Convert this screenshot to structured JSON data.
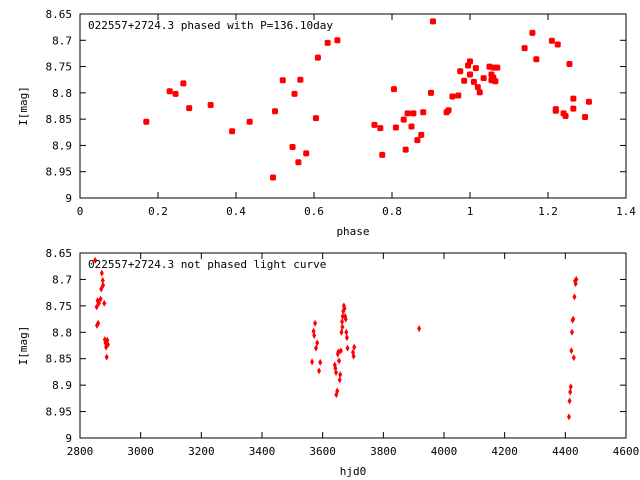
{
  "chart_data": [
    {
      "type": "scatter",
      "title": "022557+2724.3 phased with P=136.10day",
      "xlabel": "phase",
      "ylabel": "I[mag]",
      "xlim": [
        0,
        1.4
      ],
      "ylim": [
        8.65,
        9
      ],
      "y_inverted": true,
      "grid": false,
      "x_ticks": [
        "0",
        "0.2",
        "0.4",
        "0.6",
        "0.8",
        "1",
        "1.2",
        "1.4"
      ],
      "x_tick_values": [
        0,
        0.2,
        0.4,
        0.6,
        0.8,
        1.0,
        1.2,
        1.4
      ],
      "y_ticks": [
        "8.65",
        "8.7",
        "8.75",
        "8.8",
        "8.85",
        "8.9",
        "8.95",
        "9"
      ],
      "y_tick_values": [
        8.65,
        8.7,
        8.75,
        8.8,
        8.85,
        8.9,
        8.95,
        9.0
      ],
      "marker_color": "#ff0000",
      "series": [
        {
          "x": [
            0.17,
            0.23,
            0.245,
            0.265,
            0.28,
            0.335,
            0.39,
            0.435,
            0.495,
            0.5,
            0.52,
            0.545,
            0.55,
            0.56,
            0.565,
            0.58,
            0.605,
            0.61,
            0.635,
            0.66,
            0.755,
            0.77,
            0.775,
            0.805,
            0.81,
            0.83,
            0.835,
            0.84,
            0.85,
            0.855,
            0.865,
            0.875,
            0.88,
            0.9,
            0.905,
            0.94,
            0.945,
            0.955,
            0.97,
            0.975,
            0.985,
            0.995,
            1.0,
            1.0,
            1.01,
            1.015,
            1.02,
            1.025,
            1.035,
            1.05,
            1.055,
            1.055,
            1.06,
            1.06,
            1.065,
            1.07,
            1.14,
            1.16,
            1.17,
            1.21,
            1.22,
            1.22,
            1.225,
            1.24,
            1.245,
            1.255,
            1.265,
            1.265,
            1.295,
            1.305
          ],
          "y": [
            8.855,
            8.797,
            8.802,
            8.782,
            8.829,
            8.823,
            8.873,
            8.855,
            8.961,
            8.835,
            8.776,
            8.903,
            8.802,
            8.932,
            8.775,
            8.915,
            8.848,
            8.733,
            8.705,
            8.7,
            8.861,
            8.867,
            8.918,
            8.793,
            8.866,
            8.851,
            8.908,
            8.839,
            8.864,
            8.839,
            8.89,
            8.88,
            8.837,
            8.8,
            8.664,
            8.837,
            8.833,
            8.807,
            8.805,
            8.759,
            8.777,
            8.748,
            8.74,
            8.765,
            8.779,
            8.753,
            8.789,
            8.799,
            8.772,
            8.75,
            8.765,
            8.776,
            8.752,
            8.771,
            8.778,
            8.752,
            8.715,
            8.686,
            8.736,
            8.701,
            8.831,
            8.834,
            8.708,
            8.839,
            8.844,
            8.745,
            8.83,
            8.811,
            8.846,
            8.817
          ]
        }
      ]
    },
    {
      "type": "scatter",
      "title": "022557+2724.3 not phased light curve",
      "xlabel": "hjd0",
      "ylabel": "I[mag]",
      "xlim": [
        2800,
        4600
      ],
      "ylim": [
        8.65,
        9
      ],
      "y_inverted": true,
      "grid": false,
      "x_ticks": [
        "2800",
        "3000",
        "3200",
        "3400",
        "3600",
        "3800",
        "4000",
        "4200",
        "4400",
        "4600"
      ],
      "x_tick_values": [
        2800,
        3000,
        3200,
        3400,
        3600,
        3800,
        4000,
        4200,
        4400,
        4600
      ],
      "y_ticks": [
        "8.65",
        "8.7",
        "8.75",
        "8.8",
        "8.85",
        "8.9",
        "8.95",
        "9"
      ],
      "y_tick_values": [
        8.65,
        8.7,
        8.75,
        8.8,
        8.85,
        8.9,
        8.95,
        9.0
      ],
      "marker_color": "#ff0000",
      "series": [
        {
          "x": [
            2850,
            2855,
            2856,
            2858,
            2860,
            2862,
            2868,
            2870,
            2872,
            2875,
            2876,
            2880,
            2882,
            2884,
            2886,
            2888,
            2890,
            2892,
            3565,
            3570,
            3572,
            3575,
            3578,
            3582,
            3588,
            3592,
            3640,
            3642,
            3644,
            3645,
            3648,
            3650,
            3652,
            3654,
            3656,
            3658,
            3660,
            3662,
            3664,
            3665,
            3666,
            3668,
            3670,
            3672,
            3674,
            3676,
            3678,
            3680,
            3682,
            3700,
            3702,
            3704,
            3918,
            4412,
            4414,
            4416,
            4418,
            4420,
            4422,
            4424,
            4426,
            4428,
            4430,
            4432,
            4434,
            4436
          ],
          "y": [
            8.664,
            8.752,
            8.787,
            8.74,
            8.783,
            8.745,
            8.737,
            8.718,
            8.688,
            8.702,
            8.711,
            8.745,
            8.814,
            8.82,
            8.828,
            8.847,
            8.815,
            8.823,
            8.856,
            8.798,
            8.806,
            8.783,
            8.83,
            8.82,
            8.873,
            8.857,
            8.862,
            8.868,
            8.876,
            8.918,
            8.911,
            8.841,
            8.837,
            8.854,
            8.89,
            8.88,
            8.835,
            8.8,
            8.78,
            8.79,
            8.77,
            8.76,
            8.75,
            8.755,
            8.77,
            8.775,
            8.8,
            8.81,
            8.83,
            8.838,
            8.845,
            8.828,
            8.793,
            8.96,
            8.93,
            8.913,
            8.903,
            8.835,
            8.8,
            8.777,
            8.775,
            8.848,
            8.733,
            8.703,
            8.708,
            8.7
          ]
        }
      ]
    }
  ]
}
